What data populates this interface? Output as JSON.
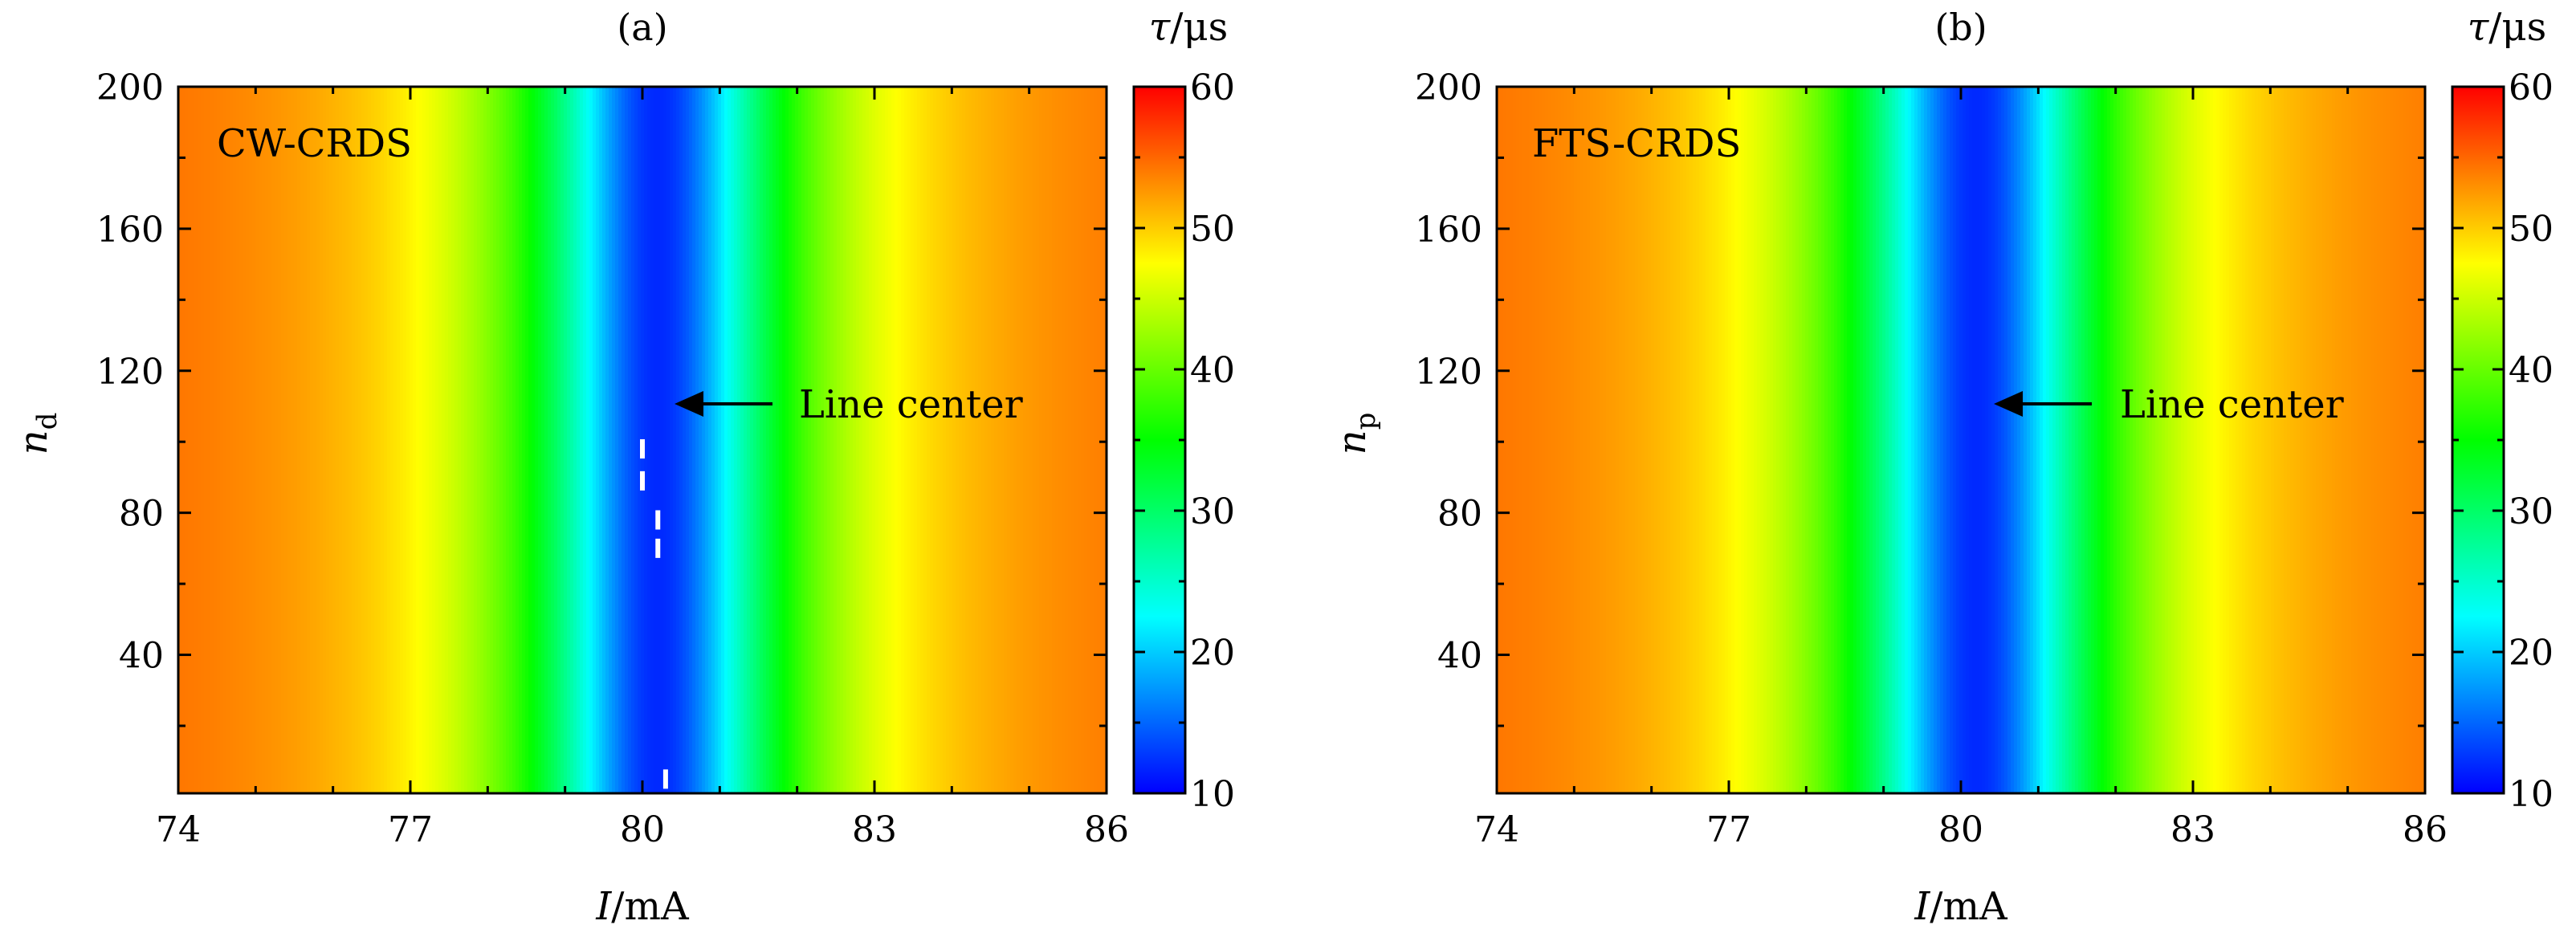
{
  "chart_data": [
    {
      "type": "heatmap",
      "title": "(a)",
      "inset_label": "CW-CRDS",
      "xlabel_var": "I",
      "xlabel_unit": "/mA",
      "ylabel_var": "n",
      "ylabel_sub": "d",
      "xlim": [
        74,
        86
      ],
      "ylim": [
        1,
        200
      ],
      "x_ticks": [
        74,
        77,
        80,
        83,
        86
      ],
      "y_ticks": [
        40,
        80,
        120,
        160,
        200
      ],
      "colorbar": {
        "label_var": "τ",
        "label_unit": "/μs",
        "range": [
          10,
          60
        ],
        "ticks": [
          10,
          20,
          30,
          40,
          50,
          60
        ]
      },
      "profile": {
        "type": "lorentzian_dip",
        "center_mA": 80.2,
        "min_tau_us": 12,
        "max_tau_us": 57,
        "half_width_mA": 1.6
      },
      "annotation": {
        "text": "Line center",
        "arrow_to": [
          80.4,
          110
        ]
      },
      "outliers": [
        [
          80.0,
          98
        ],
        [
          80.0,
          89
        ],
        [
          80.2,
          78
        ],
        [
          80.2,
          70
        ],
        [
          80.3,
          5
        ]
      ],
      "grid": false
    },
    {
      "type": "heatmap",
      "title": "(b)",
      "inset_label": "FTS-CRDS",
      "xlabel_var": "I",
      "xlabel_unit": "/mA",
      "ylabel_var": "n",
      "ylabel_sub": "p",
      "xlim": [
        74,
        86
      ],
      "ylim": [
        1,
        200
      ],
      "x_ticks": [
        74,
        77,
        80,
        83,
        86
      ],
      "y_ticks": [
        40,
        80,
        120,
        160,
        200
      ],
      "colorbar": {
        "label_var": "τ",
        "label_unit": "/μs",
        "range": [
          10,
          60
        ],
        "ticks": [
          10,
          20,
          30,
          40,
          50,
          60
        ]
      },
      "profile": {
        "type": "lorentzian_dip",
        "center_mA": 80.2,
        "min_tau_us": 12,
        "max_tau_us": 57,
        "half_width_mA": 1.6
      },
      "annotation": {
        "text": "Line center",
        "arrow_to": [
          80.4,
          110
        ]
      },
      "outliers": [],
      "grid": false
    }
  ]
}
